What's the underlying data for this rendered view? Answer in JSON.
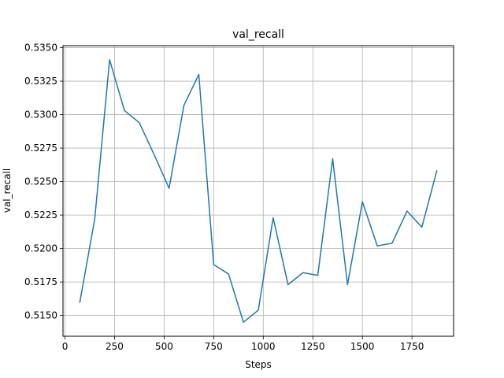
{
  "chart_data": {
    "type": "line",
    "title": "val_recall",
    "xlabel": "Steps",
    "ylabel": "val_recall",
    "xlim": [
      -10,
      1960
    ],
    "ylim": [
      0.51345,
      0.53515
    ],
    "xticks": [
      0,
      250,
      500,
      750,
      1000,
      1250,
      1500,
      1750
    ],
    "xtick_labels": [
      "0",
      "250",
      "500",
      "750",
      "1000",
      "1250",
      "1500",
      "1750"
    ],
    "yticks": [
      0.515,
      0.5175,
      0.52,
      0.5225,
      0.525,
      0.5275,
      0.53,
      0.5325,
      0.535
    ],
    "ytick_labels": [
      "0.5150",
      "0.5175",
      "0.5200",
      "0.5225",
      "0.5250",
      "0.5275",
      "0.5300",
      "0.5325",
      "0.5350"
    ],
    "grid": true,
    "series": [
      {
        "color": "#1f77b4",
        "x": [
          75,
          150,
          225,
          300,
          375,
          450,
          525,
          600,
          675,
          750,
          825,
          900,
          975,
          1050,
          1125,
          1200,
          1275,
          1350,
          1425,
          1500,
          1575,
          1650,
          1725,
          1800,
          1875
        ],
        "y": [
          0.516,
          0.5222,
          0.5341,
          0.5303,
          0.5294,
          0.527,
          0.5245,
          0.5307,
          0.533,
          0.5188,
          0.5181,
          0.5145,
          0.5154,
          0.5223,
          0.5173,
          0.5182,
          0.518,
          0.5267,
          0.5173,
          0.5235,
          0.5202,
          0.5204,
          0.5228,
          0.5216,
          0.5258
        ]
      }
    ]
  }
}
